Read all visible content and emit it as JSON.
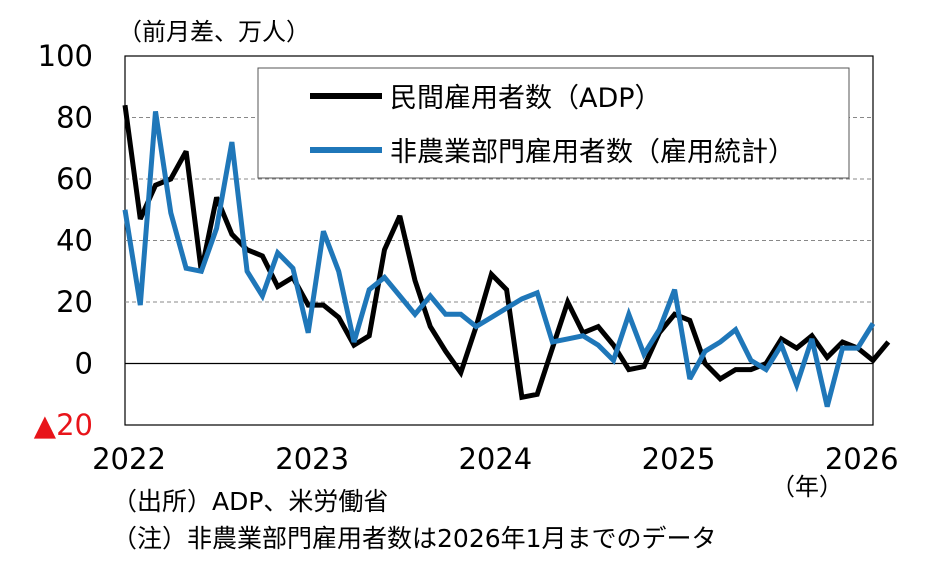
{
  "chart_data": {
    "type": "line",
    "unit_label": "（前月差、万人）",
    "x_unit_label": "（年）",
    "ylim": [
      -20,
      100
    ],
    "y_ticks": [
      100,
      80,
      60,
      40,
      20,
      0
    ],
    "y_negative_tick_label": "▲20",
    "x_ticks": [
      "2022",
      "2023",
      "2024",
      "2025",
      "2026"
    ],
    "x_index_range": [
      0,
      49
    ],
    "series": [
      {
        "name": "民間雇用者数（ADP）",
        "color": "#000000",
        "values": [
          84,
          47,
          58,
          60,
          69,
          30,
          54,
          42,
          37,
          35,
          25,
          28,
          19,
          19,
          15,
          6,
          9,
          37,
          48,
          27,
          12,
          4,
          -3,
          12,
          29,
          24,
          -11,
          -10,
          5,
          20,
          10,
          12,
          6,
          -2,
          -1,
          10,
          16,
          14,
          0,
          -5,
          -2,
          -2,
          0,
          8,
          5,
          9,
          2,
          7,
          5,
          1,
          7
        ]
      },
      {
        "name": "非農業部門雇用者数（雇用統計）",
        "color": "#1F77B9",
        "values": [
          50,
          19,
          82,
          49,
          31,
          30,
          44,
          72,
          30,
          22,
          36,
          31,
          10,
          43,
          30,
          7,
          24,
          28,
          22,
          16,
          22,
          16,
          16,
          12,
          15,
          18,
          21,
          23,
          7,
          8,
          9,
          6,
          1,
          16,
          3,
          11,
          24,
          -5,
          4,
          7,
          11,
          1,
          -2,
          6,
          -7,
          8,
          -14,
          5,
          5,
          13
        ]
      }
    ]
  },
  "notes": {
    "source": "（出所）ADP、米労働省",
    "note": "（注）非農業部門雇用者数は2026年1月までのデータ"
  }
}
